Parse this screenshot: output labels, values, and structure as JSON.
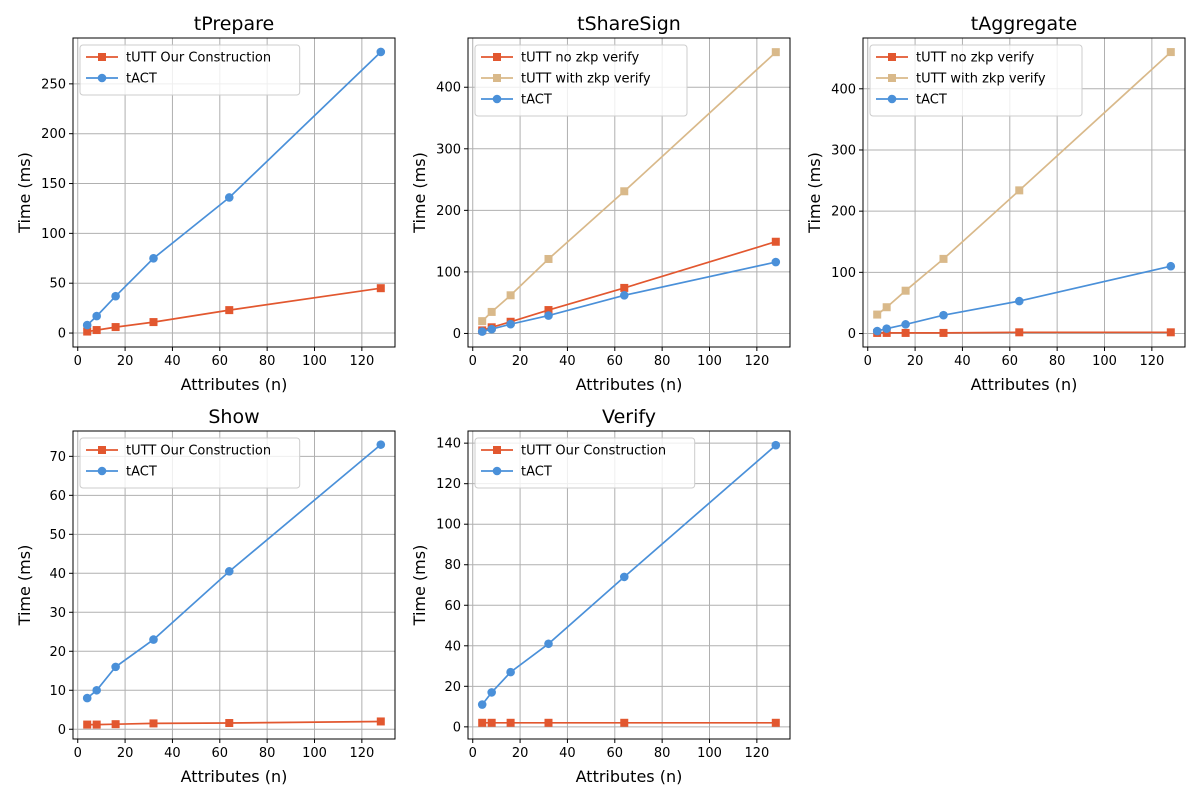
{
  "colors": {
    "orange": "#e2572f",
    "tan": "#d9b98a",
    "blue": "#4a90d9"
  },
  "chart_data": [
    {
      "type": "line",
      "title": "tPrepare",
      "xlabel": "Attributes (n)",
      "ylabel": "Time (ms)",
      "xlim": [
        -2,
        134
      ],
      "ylim": [
        -14,
        296
      ],
      "xticks": [
        0,
        20,
        40,
        60,
        80,
        100,
        120
      ],
      "yticks": [
        0,
        50,
        100,
        150,
        200,
        250
      ],
      "grid": true,
      "legend": "top-left",
      "series": [
        {
          "name": "tUTT Our Construction",
          "color": "#e2572f",
          "marker": "square",
          "x": [
            4,
            8,
            16,
            32,
            64,
            128
          ],
          "y": [
            1.5,
            3,
            6,
            11,
            23,
            45
          ]
        },
        {
          "name": "tACT",
          "color": "#4a90d9",
          "marker": "circle",
          "x": [
            4,
            8,
            16,
            32,
            64,
            128
          ],
          "y": [
            8,
            17,
            37,
            75,
            136,
            282
          ]
        }
      ]
    },
    {
      "type": "line",
      "title": "tShareSign",
      "xlabel": "Attributes (n)",
      "ylabel": "Time (ms)",
      "xlim": [
        -2,
        134
      ],
      "ylim": [
        -22,
        480
      ],
      "xticks": [
        0,
        20,
        40,
        60,
        80,
        100,
        120
      ],
      "yticks": [
        0,
        100,
        200,
        300,
        400
      ],
      "grid": true,
      "legend": "top-left",
      "series": [
        {
          "name": "tUTT no zkp verify",
          "color": "#e2572f",
          "marker": "square",
          "x": [
            4,
            8,
            16,
            32,
            64,
            128
          ],
          "y": [
            5,
            10,
            19,
            38,
            74,
            149
          ]
        },
        {
          "name": "tUTT with zkp verify",
          "color": "#d9b98a",
          "marker": "square",
          "x": [
            4,
            8,
            16,
            32,
            64,
            128
          ],
          "y": [
            20,
            35,
            62,
            121,
            231,
            457
          ]
        },
        {
          "name": "tACT",
          "color": "#4a90d9",
          "marker": "circle",
          "x": [
            4,
            8,
            16,
            32,
            64,
            128
          ],
          "y": [
            3,
            7,
            15,
            29,
            62,
            116
          ]
        }
      ]
    },
    {
      "type": "line",
      "title": "tAggregate",
      "xlabel": "Attributes (n)",
      "ylabel": "Time (ms)",
      "xlim": [
        -2,
        134
      ],
      "ylim": [
        -22,
        483
      ],
      "xticks": [
        0,
        20,
        40,
        60,
        80,
        100,
        120
      ],
      "yticks": [
        0,
        100,
        200,
        300,
        400
      ],
      "grid": true,
      "legend": "top-left",
      "series": [
        {
          "name": "tUTT no zkp verify",
          "color": "#e2572f",
          "marker": "square",
          "x": [
            4,
            8,
            16,
            32,
            64,
            128
          ],
          "y": [
            1,
            1,
            1,
            1,
            2,
            2
          ]
        },
        {
          "name": "tUTT with zkp verify",
          "color": "#d9b98a",
          "marker": "square",
          "x": [
            4,
            8,
            16,
            32,
            64,
            128
          ],
          "y": [
            31,
            43,
            70,
            122,
            234,
            460
          ]
        },
        {
          "name": "tACT",
          "color": "#4a90d9",
          "marker": "circle",
          "x": [
            4,
            8,
            16,
            32,
            64,
            128
          ],
          "y": [
            4,
            8,
            15,
            30,
            53,
            110
          ]
        }
      ]
    },
    {
      "type": "line",
      "title": "Show",
      "xlabel": "Attributes (n)",
      "ylabel": "Time (ms)",
      "xlim": [
        -2,
        134
      ],
      "ylim": [
        -2.5,
        76.5
      ],
      "xticks": [
        0,
        20,
        40,
        60,
        80,
        100,
        120
      ],
      "yticks": [
        0,
        10,
        20,
        30,
        40,
        50,
        60,
        70
      ],
      "grid": true,
      "legend": "top-left",
      "series": [
        {
          "name": "tUTT Our Construction",
          "color": "#e2572f",
          "marker": "square",
          "x": [
            4,
            8,
            16,
            32,
            64,
            128
          ],
          "y": [
            1.2,
            1.2,
            1.3,
            1.5,
            1.6,
            2
          ]
        },
        {
          "name": "tACT",
          "color": "#4a90d9",
          "marker": "circle",
          "x": [
            4,
            8,
            16,
            32,
            64,
            128
          ],
          "y": [
            8,
            10,
            16,
            23,
            40.5,
            73
          ]
        }
      ]
    },
    {
      "type": "line",
      "title": "Verify",
      "xlabel": "Attributes (n)",
      "ylabel": "Time (ms)",
      "xlim": [
        -2,
        134
      ],
      "ylim": [
        -6,
        146
      ],
      "xticks": [
        0,
        20,
        40,
        60,
        80,
        100,
        120
      ],
      "yticks": [
        0,
        20,
        40,
        60,
        80,
        100,
        120,
        140
      ],
      "grid": true,
      "legend": "top-left",
      "series": [
        {
          "name": "tUTT Our Construction",
          "color": "#e2572f",
          "marker": "square",
          "x": [
            4,
            8,
            16,
            32,
            64,
            128
          ],
          "y": [
            2,
            2,
            2,
            2,
            2,
            2
          ]
        },
        {
          "name": "tACT",
          "color": "#4a90d9",
          "marker": "circle",
          "x": [
            4,
            8,
            16,
            32,
            64,
            128
          ],
          "y": [
            11,
            17,
            27,
            41,
            74,
            139
          ]
        }
      ]
    }
  ]
}
